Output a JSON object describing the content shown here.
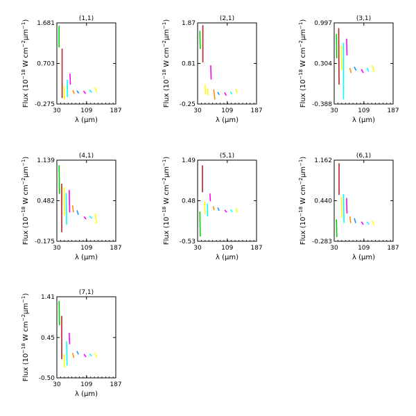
{
  "figure": {
    "xlabel": "λ (μm)",
    "ylabel_main": "Flux (10",
    "ylabel_exp1": "−18",
    "ylabel_mid": " W cm",
    "ylabel_exp2": "−2",
    "ylabel_mum": "μm",
    "ylabel_exp3": "−1",
    "ylabel_close": ")"
  },
  "chart_data": [
    {
      "type": "line",
      "title": "(1,1)",
      "xlim": [
        30,
        187
      ],
      "xticks": [
        "30",
        "109",
        "187"
      ],
      "ylim": [
        -0.275,
        1.681
      ],
      "yticks": [
        "-0.275",
        "0.703",
        "1.681"
      ],
      "series": [
        {
          "color": "#00cc00",
          "segments": [
            [
              36,
              1.6
            ],
            [
              36,
              1.1
            ]
          ]
        },
        {
          "color": "#b22222",
          "segments": [
            [
              44,
              1.05
            ],
            [
              44,
              -0.12
            ]
          ]
        },
        {
          "color": "#ffff00",
          "segments": [
            [
              49,
              0.15
            ],
            [
              50,
              -0.15
            ]
          ]
        },
        {
          "color": "#00ffff",
          "segments": [
            [
              58,
              0.3
            ],
            [
              58,
              -0.1
            ]
          ]
        },
        {
          "color": "#ff00ff",
          "segments": [
            [
              65,
              0.45
            ],
            [
              66,
              0.2
            ]
          ]
        },
        {
          "color": "#ff8c00",
          "segments": [
            [
              73,
              0.05
            ],
            [
              76,
              -0.02
            ]
          ]
        },
        {
          "color": "#1e90ff",
          "segments": [
            [
              84,
              0.04
            ],
            [
              88,
              -0.01
            ]
          ]
        },
        {
          "color": "#ff00ff",
          "segments": [
            [
              102,
              0.03
            ],
            [
              106,
              -0.02
            ]
          ]
        },
        {
          "color": "#00ffff",
          "segments": [
            [
              118,
              0.06
            ],
            [
              122,
              0.01
            ]
          ]
        },
        {
          "color": "#ffff00",
          "segments": [
            [
              132,
              0.12
            ],
            [
              136,
              0.02
            ]
          ]
        }
      ]
    },
    {
      "type": "line",
      "title": "(2,1)",
      "xlim": [
        30,
        187
      ],
      "xticks": [
        "30",
        "109",
        "187"
      ],
      "ylim": [
        -0.25,
        1.87
      ],
      "yticks": [
        "-0.25",
        "0.81",
        "1.87"
      ],
      "series": [
        {
          "color": "#00cc00",
          "segments": [
            [
              36,
              1.65
            ],
            [
              37,
              1.2
            ]
          ]
        },
        {
          "color": "#b22222",
          "segments": [
            [
              44,
              1.8
            ],
            [
              44,
              0.85
            ]
          ]
        },
        {
          "color": "#ffff00",
          "segments": [
            [
              50,
              0.25
            ],
            [
              51,
              0.02
            ]
          ]
        },
        {
          "color": "#ffff00",
          "segments": [
            [
              57,
              0.15
            ],
            [
              58,
              -0.02
            ]
          ]
        },
        {
          "color": "#ff00ff",
          "segments": [
            [
              65,
              0.75
            ],
            [
              66,
              0.4
            ]
          ]
        },
        {
          "color": "#ff8c00",
          "segments": [
            [
              73,
              0.12
            ],
            [
              76,
              -0.12
            ]
          ]
        },
        {
          "color": "#1e90ff",
          "segments": [
            [
              84,
              0.05
            ],
            [
              87,
              0.0
            ]
          ]
        },
        {
          "color": "#ff00ff",
          "segments": [
            [
              102,
              0.04
            ],
            [
              106,
              -0.02
            ]
          ]
        },
        {
          "color": "#00ffff",
          "segments": [
            [
              118,
              0.06
            ],
            [
              121,
              0.02
            ]
          ]
        },
        {
          "color": "#ffff00",
          "segments": [
            [
              132,
              0.14
            ],
            [
              136,
              0.04
            ]
          ]
        }
      ]
    },
    {
      "type": "line",
      "title": "(3,1)",
      "xlim": [
        30,
        187
      ],
      "xticks": [
        "30",
        "109",
        "187"
      ],
      "ylim": [
        -0.388,
        0.997
      ],
      "yticks": [
        "-0.388",
        "0.304",
        "0.997"
      ],
      "series": [
        {
          "color": "#00cc00",
          "segments": [
            [
              36,
              0.8
            ],
            [
              37,
              0.4
            ]
          ]
        },
        {
          "color": "#b22222",
          "segments": [
            [
              42,
              0.9
            ],
            [
              43,
              -0.05
            ]
          ]
        },
        {
          "color": "#ffff00",
          "segments": [
            [
              49,
              0.6
            ],
            [
              50,
              0.2
            ]
          ]
        },
        {
          "color": "#00ffff",
          "segments": [
            [
              55,
              0.65
            ],
            [
              55,
              -0.3
            ]
          ]
        },
        {
          "color": "#ff00ff",
          "segments": [
            [
              63,
              0.72
            ],
            [
              64,
              0.45
            ]
          ]
        },
        {
          "color": "#ff8c00",
          "segments": [
            [
              72,
              0.22
            ],
            [
              75,
              0.15
            ]
          ]
        },
        {
          "color": "#1e90ff",
          "segments": [
            [
              84,
              0.24
            ],
            [
              88,
              0.19
            ]
          ]
        },
        {
          "color": "#ff00ff",
          "segments": [
            [
              103,
              0.2
            ],
            [
              107,
              0.15
            ]
          ]
        },
        {
          "color": "#00ffff",
          "segments": [
            [
              118,
              0.22
            ],
            [
              122,
              0.17
            ]
          ]
        },
        {
          "color": "#ffff00",
          "segments": [
            [
              132,
              0.27
            ],
            [
              136,
              0.16
            ]
          ]
        }
      ]
    },
    {
      "type": "line",
      "title": "(4,1)",
      "xlim": [
        30,
        187
      ],
      "xticks": [
        "30",
        "109",
        "187"
      ],
      "ylim": [
        -0.175,
        1.139
      ],
      "yticks": [
        "-0.175",
        "0.482",
        "1.139"
      ],
      "series": [
        {
          "color": "#00cc00",
          "segments": [
            [
              36,
              1.05
            ],
            [
              37,
              0.6
            ]
          ]
        },
        {
          "color": "#b22222",
          "segments": [
            [
              43,
              0.75
            ],
            [
              43,
              -0.02
            ]
          ]
        },
        {
          "color": "#ffff00",
          "segments": [
            [
              49,
              0.7
            ],
            [
              50,
              0.25
            ]
          ]
        },
        {
          "color": "#00ffff",
          "segments": [
            [
              55,
              0.6
            ],
            [
              56,
              0.1
            ]
          ]
        },
        {
          "color": "#ff00ff",
          "segments": [
            [
              63,
              0.65
            ],
            [
              64,
              0.3
            ]
          ]
        },
        {
          "color": "#ff8c00",
          "segments": [
            [
              72,
              0.4
            ],
            [
              74,
              0.3
            ]
          ]
        },
        {
          "color": "#1e90ff",
          "segments": [
            [
              84,
              0.32
            ],
            [
              87,
              0.26
            ]
          ]
        },
        {
          "color": "#ff00ff",
          "segments": [
            [
              103,
              0.22
            ],
            [
              107,
              0.19
            ]
          ]
        },
        {
          "color": "#00ffff",
          "segments": [
            [
              118,
              0.23
            ],
            [
              122,
              0.2
            ]
          ]
        },
        {
          "color": "#ffff00",
          "segments": [
            [
              132,
              0.27
            ],
            [
              136,
              0.12
            ]
          ]
        }
      ]
    },
    {
      "type": "line",
      "title": "(5,1)",
      "xlim": [
        30,
        187
      ],
      "xticks": [
        "30",
        "109",
        "187"
      ],
      "ylim": [
        -0.53,
        1.49
      ],
      "yticks": [
        "-0.53",
        "0.48",
        "1.49"
      ],
      "series": [
        {
          "color": "#00cc00",
          "segments": [
            [
              36,
              0.2
            ],
            [
              37,
              -0.4
            ]
          ]
        },
        {
          "color": "#b22222",
          "segments": [
            [
              43,
              1.35
            ],
            [
              43,
              0.7
            ]
          ]
        },
        {
          "color": "#ffff00",
          "segments": [
            [
              49,
              0.45
            ],
            [
              50,
              0.15
            ]
          ]
        },
        {
          "color": "#00ffff",
          "segments": [
            [
              56,
              0.4
            ],
            [
              57,
              0.1
            ]
          ]
        },
        {
          "color": "#ff00ff",
          "segments": [
            [
              63,
              0.65
            ],
            [
              64,
              0.48
            ]
          ]
        },
        {
          "color": "#ff8c00",
          "segments": [
            [
              72,
              0.33
            ],
            [
              74,
              0.26
            ]
          ]
        },
        {
          "color": "#1e90ff",
          "segments": [
            [
              84,
              0.3
            ],
            [
              87,
              0.24
            ]
          ]
        },
        {
          "color": "#ff00ff",
          "segments": [
            [
              103,
              0.24
            ],
            [
              107,
              0.2
            ]
          ]
        },
        {
          "color": "#00ffff",
          "segments": [
            [
              118,
              0.25
            ],
            [
              122,
              0.21
            ]
          ]
        },
        {
          "color": "#ffff00",
          "segments": [
            [
              132,
              0.28
            ],
            [
              136,
              0.2
            ]
          ]
        }
      ]
    },
    {
      "type": "line",
      "title": "(6,1)",
      "xlim": [
        30,
        187
      ],
      "xticks": [
        "30",
        "109",
        "187"
      ],
      "ylim": [
        -0.283,
        1.162
      ],
      "yticks": [
        "-0.283",
        "0.440",
        "1.162"
      ],
      "series": [
        {
          "color": "#00cc00",
          "segments": [
            [
              36,
              0.1
            ],
            [
              37,
              -0.2
            ]
          ]
        },
        {
          "color": "#b22222",
          "segments": [
            [
              43,
              1.1
            ],
            [
              43,
              0.55
            ]
          ]
        },
        {
          "color": "#ffff00",
          "segments": [
            [
              49,
              0.5
            ],
            [
              50,
              0.15
            ]
          ]
        },
        {
          "color": "#00ffff",
          "segments": [
            [
              55,
              0.55
            ],
            [
              56,
              0.05
            ]
          ]
        },
        {
          "color": "#ff00ff",
          "segments": [
            [
              63,
              0.48
            ],
            [
              64,
              0.22
            ]
          ]
        },
        {
          "color": "#ff8c00",
          "segments": [
            [
              72,
              0.15
            ],
            [
              74,
              0.05
            ]
          ]
        },
        {
          "color": "#1e90ff",
          "segments": [
            [
              84,
              0.12
            ],
            [
              87,
              0.05
            ]
          ]
        },
        {
          "color": "#ff00ff",
          "segments": [
            [
              103,
              0.06
            ],
            [
              107,
              0.02
            ]
          ]
        },
        {
          "color": "#00ffff",
          "segments": [
            [
              118,
              0.06
            ],
            [
              122,
              0.02
            ]
          ]
        },
        {
          "color": "#ffff00",
          "segments": [
            [
              132,
              0.08
            ],
            [
              136,
              0.01
            ]
          ]
        }
      ]
    },
    {
      "type": "line",
      "title": "(7,1)",
      "xlim": [
        30,
        187
      ],
      "xticks": [
        "30",
        "109",
        "187"
      ],
      "ylim": [
        -0.5,
        1.41
      ],
      "yticks": [
        "-0.50",
        "0.45",
        "1.41"
      ],
      "series": [
        {
          "color": "#00cc00",
          "segments": [
            [
              36,
              1.3
            ],
            [
              37,
              0.75
            ]
          ]
        },
        {
          "color": "#b22222",
          "segments": [
            [
              43,
              0.95
            ],
            [
              43,
              -0.05
            ]
          ]
        },
        {
          "color": "#ffff00",
          "segments": [
            [
              49,
              0.05
            ],
            [
              50,
              -0.25
            ]
          ]
        },
        {
          "color": "#00ffff",
          "segments": [
            [
              56,
              0.35
            ],
            [
              57,
              -0.2
            ]
          ]
        },
        {
          "color": "#ff00ff",
          "segments": [
            [
              63,
              0.55
            ],
            [
              64,
              0.3
            ]
          ]
        },
        {
          "color": "#ff8c00",
          "segments": [
            [
              72,
              0.08
            ],
            [
              75,
              -0.02
            ]
          ]
        },
        {
          "color": "#1e90ff",
          "segments": [
            [
              84,
              0.12
            ],
            [
              87,
              0.06
            ]
          ]
        },
        {
          "color": "#ff00ff",
          "segments": [
            [
              103,
              0.05
            ],
            [
              107,
              0.0
            ]
          ]
        },
        {
          "color": "#00ffff",
          "segments": [
            [
              118,
              0.06
            ],
            [
              122,
              0.02
            ]
          ]
        },
        {
          "color": "#ffff00",
          "segments": [
            [
              132,
              0.08
            ],
            [
              136,
              -0.02
            ]
          ]
        }
      ]
    }
  ]
}
